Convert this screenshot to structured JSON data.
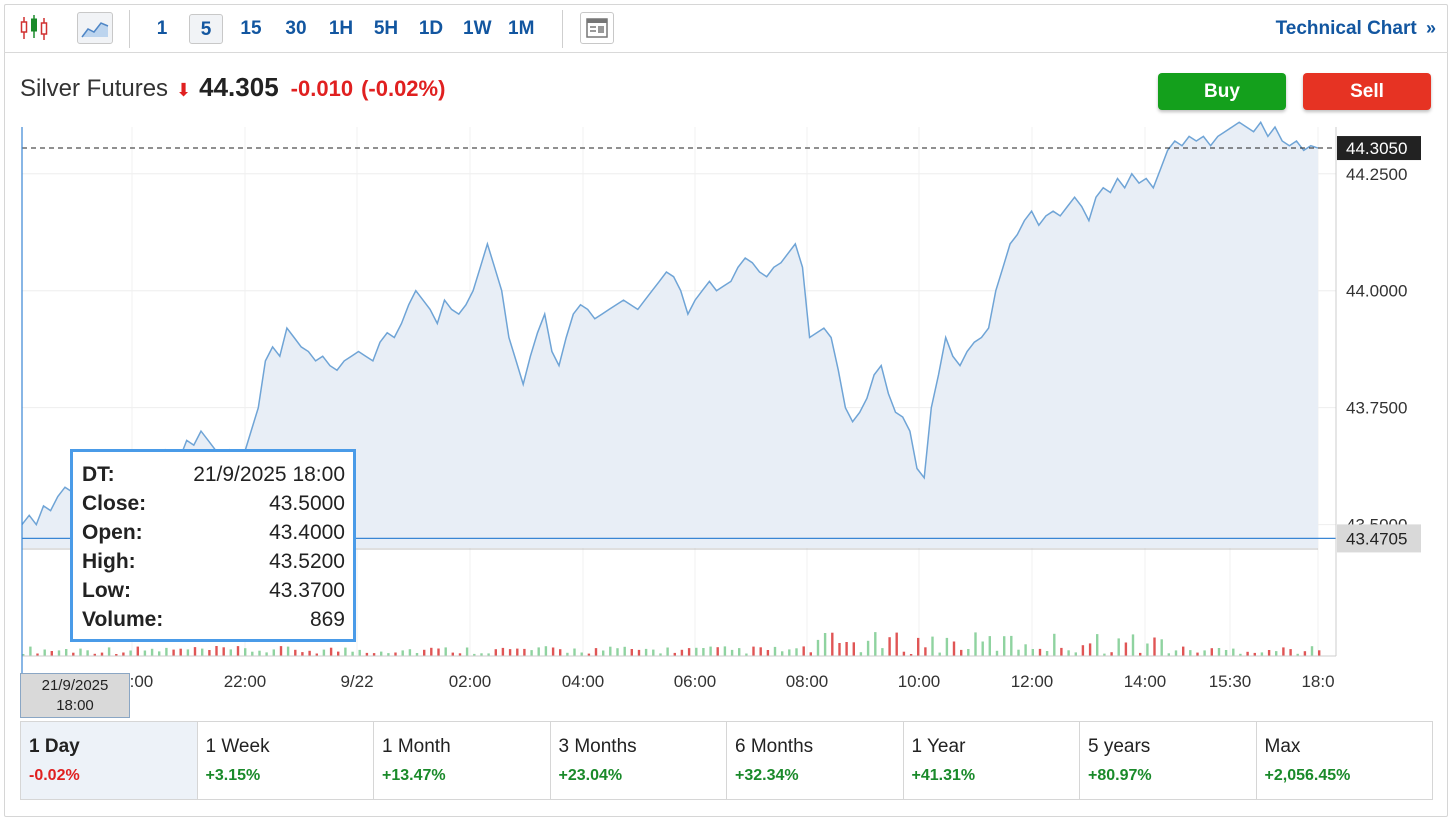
{
  "toolbar": {
    "timeframes": [
      "1",
      "5",
      "15",
      "30",
      "1H",
      "5H",
      "1D",
      "1W",
      "1M"
    ],
    "active_timeframe": "5",
    "technical_chart_label": "Technical Chart",
    "icons": [
      "candlestick-icon",
      "area-chart-icon",
      "news-layout-icon",
      "double-chevron-right-icon"
    ]
  },
  "quote": {
    "name": "Silver Futures",
    "price": "44.305",
    "change": "-0.010",
    "change_pct": "(-0.02%)",
    "direction_icon": "arrow-down-icon"
  },
  "actions": {
    "buy_label": "Buy",
    "sell_label": "Sell"
  },
  "colors": {
    "line": "#6fa4d6",
    "area": "#e8eef6",
    "up": "#1a8a2a",
    "down": "#e02020",
    "buy": "#14a01c",
    "sell": "#e63323",
    "link": "#1256a0"
  },
  "chart_data": {
    "type": "area",
    "y_ticks": [
      "44.2500",
      "44.0000",
      "43.7500",
      "43.5000"
    ],
    "ylim": [
      43.45,
      44.35
    ],
    "x_ticks": [
      "20:00",
      "22:00",
      "9/22",
      "02:00",
      "04:00",
      "06:00",
      "08:00",
      "10:00",
      "12:00",
      "14:00",
      "15:30",
      "18:0"
    ],
    "current_price_label": "44.3050",
    "current_price": 44.305,
    "crosshair_label": "43.4705",
    "crosshair_value": 43.4705,
    "series": [
      {
        "values": [
          43.5,
          43.52,
          43.5,
          43.54,
          43.53,
          43.56,
          43.58,
          43.57,
          43.6,
          43.62,
          43.61,
          43.6,
          43.63,
          43.62,
          43.6,
          43.61,
          43.6,
          43.62,
          43.63,
          43.64,
          43.66,
          43.65,
          43.64,
          43.68,
          43.67,
          43.7,
          43.68,
          43.66,
          43.65,
          43.66,
          43.64,
          43.65,
          43.7,
          43.75,
          43.85,
          43.88,
          43.86,
          43.92,
          43.9,
          43.88,
          43.87,
          43.85,
          43.86,
          43.84,
          43.83,
          43.85,
          43.86,
          43.87,
          43.86,
          43.85,
          43.89,
          43.91,
          43.9,
          43.93,
          43.97,
          44.0,
          43.98,
          43.96,
          43.93,
          43.98,
          43.96,
          43.95,
          43.97,
          44.0,
          44.05,
          44.1,
          44.05,
          44.0,
          43.9,
          43.85,
          43.8,
          43.86,
          43.91,
          43.95,
          43.87,
          43.84,
          43.9,
          43.95,
          43.97,
          43.96,
          43.94,
          43.95,
          43.96,
          43.97,
          43.98,
          43.97,
          43.96,
          43.98,
          44.0,
          44.02,
          44.04,
          44.03,
          44.0,
          43.95,
          43.98,
          44.0,
          44.02,
          44.0,
          44.01,
          44.02,
          44.05,
          44.07,
          44.06,
          44.04,
          44.03,
          44.05,
          44.06,
          44.08,
          44.1,
          44.05,
          43.9,
          43.91,
          43.92,
          43.9,
          43.83,
          43.75,
          43.72,
          43.74,
          43.77,
          43.82,
          43.84,
          43.78,
          43.74,
          43.73,
          43.7,
          43.62,
          43.6,
          43.75,
          43.82,
          43.9,
          43.86,
          43.84,
          43.87,
          43.89,
          43.9,
          43.92,
          44.0,
          44.05,
          44.1,
          44.12,
          44.15,
          44.17,
          44.14,
          44.16,
          44.17,
          44.16,
          44.18,
          44.2,
          44.18,
          44.15,
          44.2,
          44.22,
          44.21,
          44.24,
          44.22,
          44.25,
          44.23,
          44.24,
          44.22,
          44.26,
          44.3,
          44.32,
          44.31,
          44.33,
          44.32,
          44.33,
          44.31,
          44.33,
          44.34,
          44.35,
          44.36,
          44.35,
          44.34,
          44.36,
          44.33,
          44.35,
          44.32,
          44.31,
          44.32,
          44.3,
          44.31,
          44.305
        ]
      }
    ],
    "tooltip": {
      "rows": [
        {
          "k": "DT:",
          "v": "21/9/2025 18:00"
        },
        {
          "k": "Close:",
          "v": "43.5000"
        },
        {
          "k": "Open:",
          "v": "43.4000"
        },
        {
          "k": "High:",
          "v": "43.5200"
        },
        {
          "k": "Low:",
          "v": "43.3700"
        },
        {
          "k": "Volume:",
          "v": "869"
        }
      ]
    },
    "crosshair_date": "21/9/2025",
    "crosshair_time": "18:00"
  },
  "periods": [
    {
      "label": "1 Day",
      "change": "-0.02%",
      "dir": "down",
      "active": true
    },
    {
      "label": "1 Week",
      "change": "+3.15%",
      "dir": "up"
    },
    {
      "label": "1 Month",
      "change": "+13.47%",
      "dir": "up"
    },
    {
      "label": "3 Months",
      "change": "+23.04%",
      "dir": "up"
    },
    {
      "label": "6 Months",
      "change": "+32.34%",
      "dir": "up"
    },
    {
      "label": "1 Year",
      "change": "+41.31%",
      "dir": "up"
    },
    {
      "label": "5 years",
      "change": "+80.97%",
      "dir": "up"
    },
    {
      "label": "Max",
      "change": "+2,056.45%",
      "dir": "up"
    }
  ]
}
